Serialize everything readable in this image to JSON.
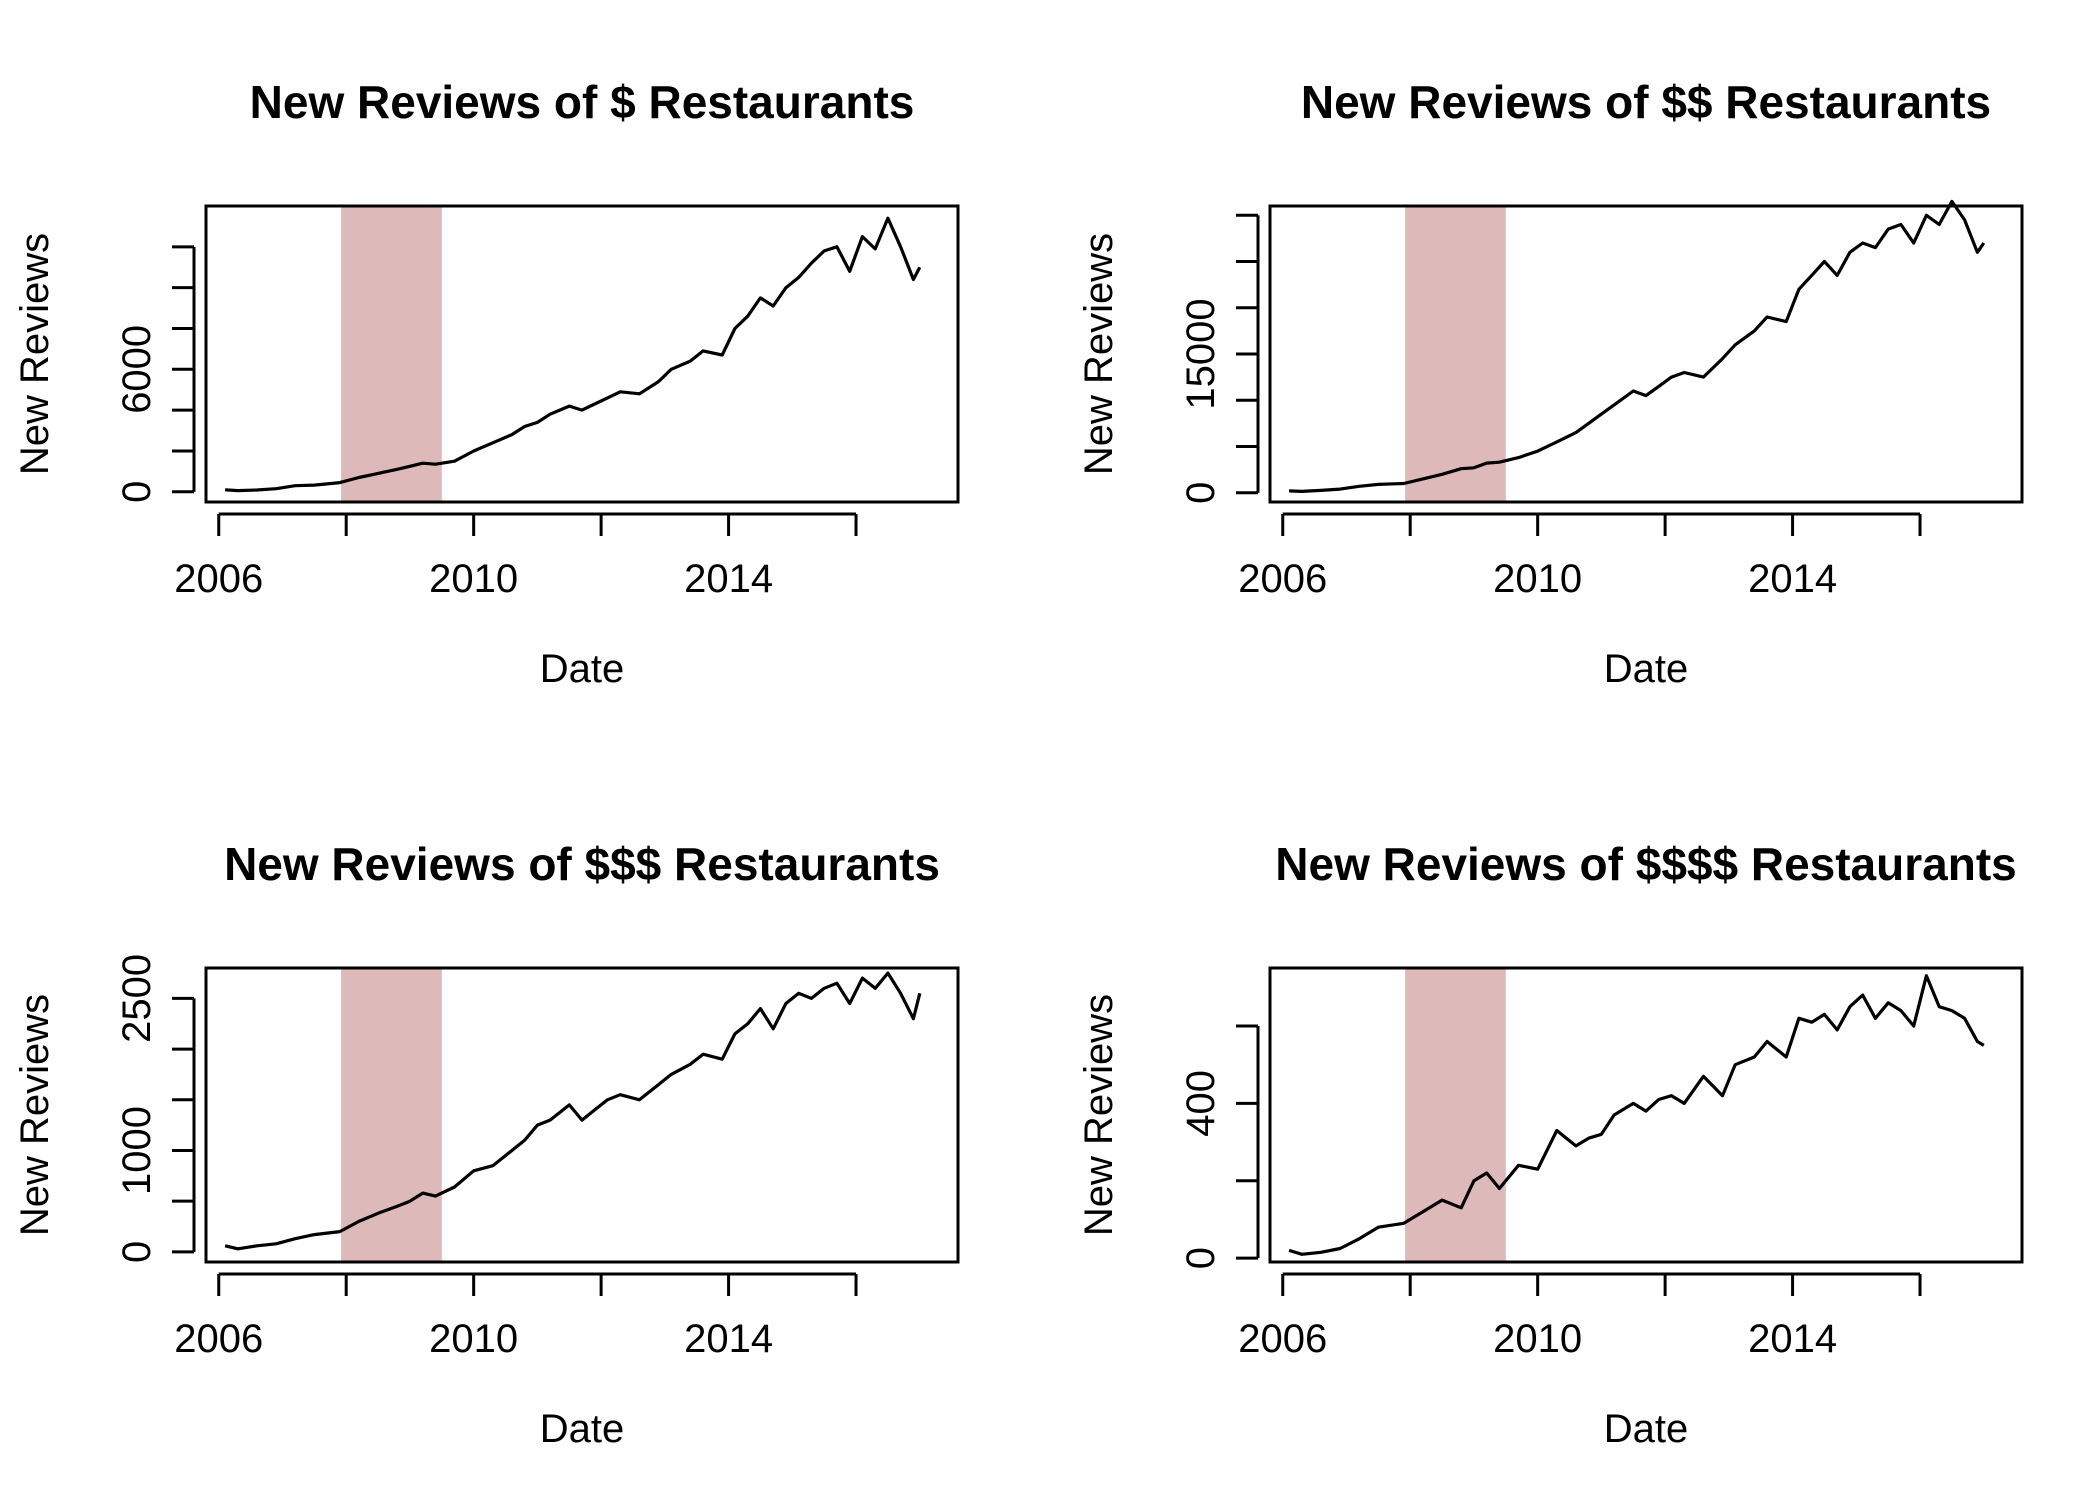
{
  "figure": {
    "background": "#ffffff",
    "line_color": "#000000",
    "recession_color": "#ddb9b9"
  },
  "chart_data": [
    {
      "type": "line",
      "title": "New Reviews of $ Restaurants",
      "xlabel": "Date",
      "ylabel": "New Reviews",
      "xlim": [
        2005.8,
        2017.6
      ],
      "ylim": [
        -500,
        14000
      ],
      "x_ticks": [
        2006,
        2008,
        2010,
        2012,
        2014,
        2016
      ],
      "x_tick_labels": [
        "2006",
        "2010",
        "2014"
      ],
      "x_tick_label_values": [
        2006,
        2010,
        2014
      ],
      "y_ticks": [
        0,
        2000,
        4000,
        6000,
        8000,
        10000,
        12000
      ],
      "y_tick_labels": [
        "0",
        "6000"
      ],
      "y_tick_label_values": [
        0,
        6000
      ],
      "shaded_region": {
        "x_start": 2007.92,
        "x_end": 2009.5
      },
      "series": [
        {
          "x": [
            2006.1,
            2006.3,
            2006.6,
            2006.9,
            2007.2,
            2007.5,
            2007.9,
            2008.2,
            2008.5,
            2008.8,
            2009.0,
            2009.2,
            2009.4,
            2009.7,
            2010.0,
            2010.3,
            2010.6,
            2010.8,
            2011.0,
            2011.2,
            2011.5,
            2011.7,
            2011.9,
            2012.1,
            2012.3,
            2012.6,
            2012.9,
            2013.1,
            2013.4,
            2013.6,
            2013.9,
            2014.1,
            2014.3,
            2014.5,
            2014.7,
            2014.9,
            2015.1,
            2015.3,
            2015.5,
            2015.7,
            2015.9,
            2016.1,
            2016.3,
            2016.5,
            2016.7,
            2016.9,
            2017.0
          ],
          "y": [
            100,
            60,
            90,
            150,
            300,
            330,
            450,
            700,
            900,
            1100,
            1250,
            1400,
            1350,
            1500,
            2000,
            2400,
            2800,
            3200,
            3400,
            3800,
            4200,
            4000,
            4300,
            4600,
            4900,
            4800,
            5400,
            6000,
            6400,
            6900,
            6700,
            8000,
            8600,
            9500,
            9100,
            10000,
            10500,
            11200,
            11800,
            12000,
            10800,
            12500,
            11900,
            13400,
            12000,
            10400,
            11000
          ]
        }
      ]
    },
    {
      "type": "line",
      "title": "New Reviews of $$ Restaurants",
      "xlabel": "Date",
      "ylabel": "New Reviews",
      "xlim": [
        2005.8,
        2017.6
      ],
      "ylim": [
        -1000,
        31000
      ],
      "x_ticks": [
        2006,
        2008,
        2010,
        2012,
        2014,
        2016
      ],
      "x_tick_labels": [
        "2006",
        "2010",
        "2014"
      ],
      "x_tick_label_values": [
        2006,
        2010,
        2014
      ],
      "y_ticks": [
        0,
        5000,
        10000,
        15000,
        20000,
        25000,
        30000
      ],
      "y_tick_labels": [
        "0",
        "15000"
      ],
      "y_tick_label_values": [
        0,
        15000
      ],
      "shaded_region": {
        "x_start": 2007.92,
        "x_end": 2009.5
      },
      "series": [
        {
          "x": [
            2006.1,
            2006.3,
            2006.6,
            2006.9,
            2007.2,
            2007.5,
            2007.9,
            2008.2,
            2008.5,
            2008.8,
            2009.0,
            2009.2,
            2009.4,
            2009.7,
            2010.0,
            2010.3,
            2010.6,
            2010.8,
            2011.0,
            2011.2,
            2011.5,
            2011.7,
            2011.9,
            2012.1,
            2012.3,
            2012.6,
            2012.9,
            2013.1,
            2013.4,
            2013.6,
            2013.9,
            2014.1,
            2014.3,
            2014.5,
            2014.7,
            2014.9,
            2015.1,
            2015.3,
            2015.5,
            2015.7,
            2015.9,
            2016.1,
            2016.3,
            2016.5,
            2016.7,
            2016.9,
            2017.0
          ],
          "y": [
            200,
            150,
            250,
            400,
            700,
            900,
            1000,
            1500,
            2000,
            2600,
            2700,
            3200,
            3300,
            3800,
            4500,
            5500,
            6500,
            7500,
            8500,
            9500,
            11000,
            10500,
            11500,
            12500,
            13000,
            12500,
            14500,
            16000,
            17500,
            19000,
            18500,
            22000,
            23500,
            25000,
            23500,
            26000,
            27000,
            26500,
            28500,
            29000,
            27000,
            30000,
            29000,
            31500,
            29500,
            26000,
            27000
          ]
        }
      ]
    },
    {
      "type": "line",
      "title": "New Reviews of $$$ Restaurants",
      "xlabel": "Date",
      "ylabel": "New Reviews",
      "xlim": [
        2005.8,
        2017.6
      ],
      "ylim": [
        -100,
        2800
      ],
      "x_ticks": [
        2006,
        2008,
        2010,
        2012,
        2014,
        2016
      ],
      "x_tick_labels": [
        "2006",
        "2010",
        "2014"
      ],
      "x_tick_label_values": [
        2006,
        2010,
        2014
      ],
      "y_ticks": [
        0,
        500,
        1000,
        1500,
        2000,
        2500
      ],
      "y_tick_labels": [
        "0",
        "1000",
        "2500"
      ],
      "y_tick_label_values": [
        0,
        1000,
        2500
      ],
      "shaded_region": {
        "x_start": 2007.92,
        "x_end": 2009.5
      },
      "series": [
        {
          "x": [
            2006.1,
            2006.3,
            2006.6,
            2006.9,
            2007.2,
            2007.5,
            2007.9,
            2008.2,
            2008.5,
            2008.8,
            2009.0,
            2009.2,
            2009.4,
            2009.7,
            2010.0,
            2010.3,
            2010.6,
            2010.8,
            2011.0,
            2011.2,
            2011.5,
            2011.7,
            2011.9,
            2012.1,
            2012.3,
            2012.6,
            2012.9,
            2013.1,
            2013.4,
            2013.6,
            2013.9,
            2014.1,
            2014.3,
            2014.5,
            2014.7,
            2014.9,
            2015.1,
            2015.3,
            2015.5,
            2015.7,
            2015.9,
            2016.1,
            2016.3,
            2016.5,
            2016.7,
            2016.9,
            2017.0
          ],
          "y": [
            60,
            30,
            60,
            80,
            130,
            170,
            200,
            300,
            380,
            450,
            500,
            580,
            550,
            640,
            800,
            850,
            1000,
            1100,
            1250,
            1300,
            1450,
            1300,
            1400,
            1500,
            1550,
            1500,
            1650,
            1750,
            1850,
            1950,
            1900,
            2150,
            2250,
            2400,
            2200,
            2450,
            2550,
            2500,
            2600,
            2650,
            2450,
            2700,
            2600,
            2750,
            2550,
            2300,
            2550
          ]
        }
      ]
    },
    {
      "type": "line",
      "title": "New Reviews of $$$$ Restaurants",
      "xlabel": "Date",
      "ylabel": "New Reviews",
      "xlim": [
        2005.8,
        2017.6
      ],
      "ylim": [
        -10,
        750
      ],
      "x_ticks": [
        2006,
        2008,
        2010,
        2012,
        2014,
        2016
      ],
      "x_tick_labels": [
        "2006",
        "2010",
        "2014"
      ],
      "x_tick_label_values": [
        2006,
        2010,
        2014
      ],
      "y_ticks": [
        0,
        200,
        400,
        600
      ],
      "y_tick_labels": [
        "0",
        "400"
      ],
      "y_tick_label_values": [
        0,
        400
      ],
      "shaded_region": {
        "x_start": 2007.92,
        "x_end": 2009.5
      },
      "series": [
        {
          "x": [
            2006.1,
            2006.3,
            2006.6,
            2006.9,
            2007.2,
            2007.5,
            2007.9,
            2008.2,
            2008.5,
            2008.8,
            2009.0,
            2009.2,
            2009.4,
            2009.7,
            2010.0,
            2010.3,
            2010.6,
            2010.8,
            2011.0,
            2011.2,
            2011.5,
            2011.7,
            2011.9,
            2012.1,
            2012.3,
            2012.6,
            2012.9,
            2013.1,
            2013.4,
            2013.6,
            2013.9,
            2014.1,
            2014.3,
            2014.5,
            2014.7,
            2014.9,
            2015.1,
            2015.3,
            2015.5,
            2015.7,
            2015.9,
            2016.1,
            2016.3,
            2016.5,
            2016.7,
            2016.9,
            2017.0
          ],
          "y": [
            20,
            10,
            15,
            25,
            50,
            80,
            90,
            120,
            150,
            130,
            200,
            220,
            180,
            240,
            230,
            330,
            290,
            310,
            320,
            370,
            400,
            380,
            410,
            420,
            400,
            470,
            420,
            500,
            520,
            560,
            520,
            620,
            610,
            630,
            590,
            650,
            680,
            620,
            660,
            640,
            600,
            730,
            650,
            640,
            620,
            560,
            550
          ]
        }
      ]
    }
  ]
}
